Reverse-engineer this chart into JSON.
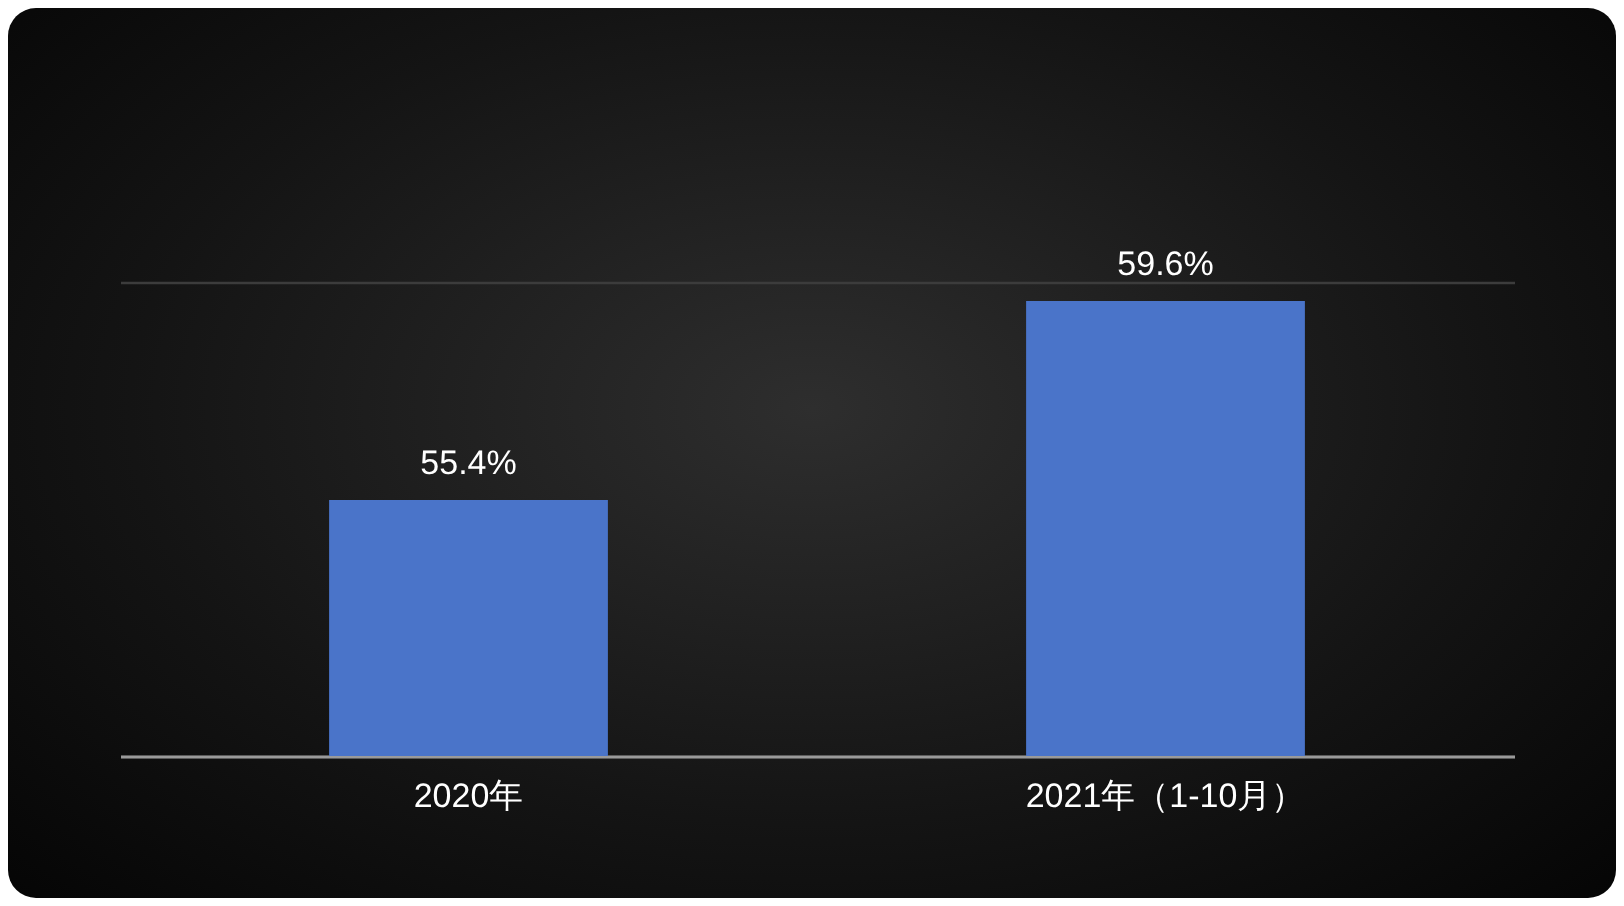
{
  "chart_data": {
    "type": "bar",
    "categories": [
      "2020年",
      "2021年（1-10月）"
    ],
    "values": [
      55.4,
      59.6
    ],
    "color": "#4a74c9",
    "value_labels": [
      "55.4%",
      "59.6%"
    ],
    "ylim": [
      50,
      60
    ],
    "yticks": [
      {
        "value": 50,
        "label": null
      },
      {
        "value": 60,
        "label": null
      }
    ],
    "grid": "y"
  }
}
